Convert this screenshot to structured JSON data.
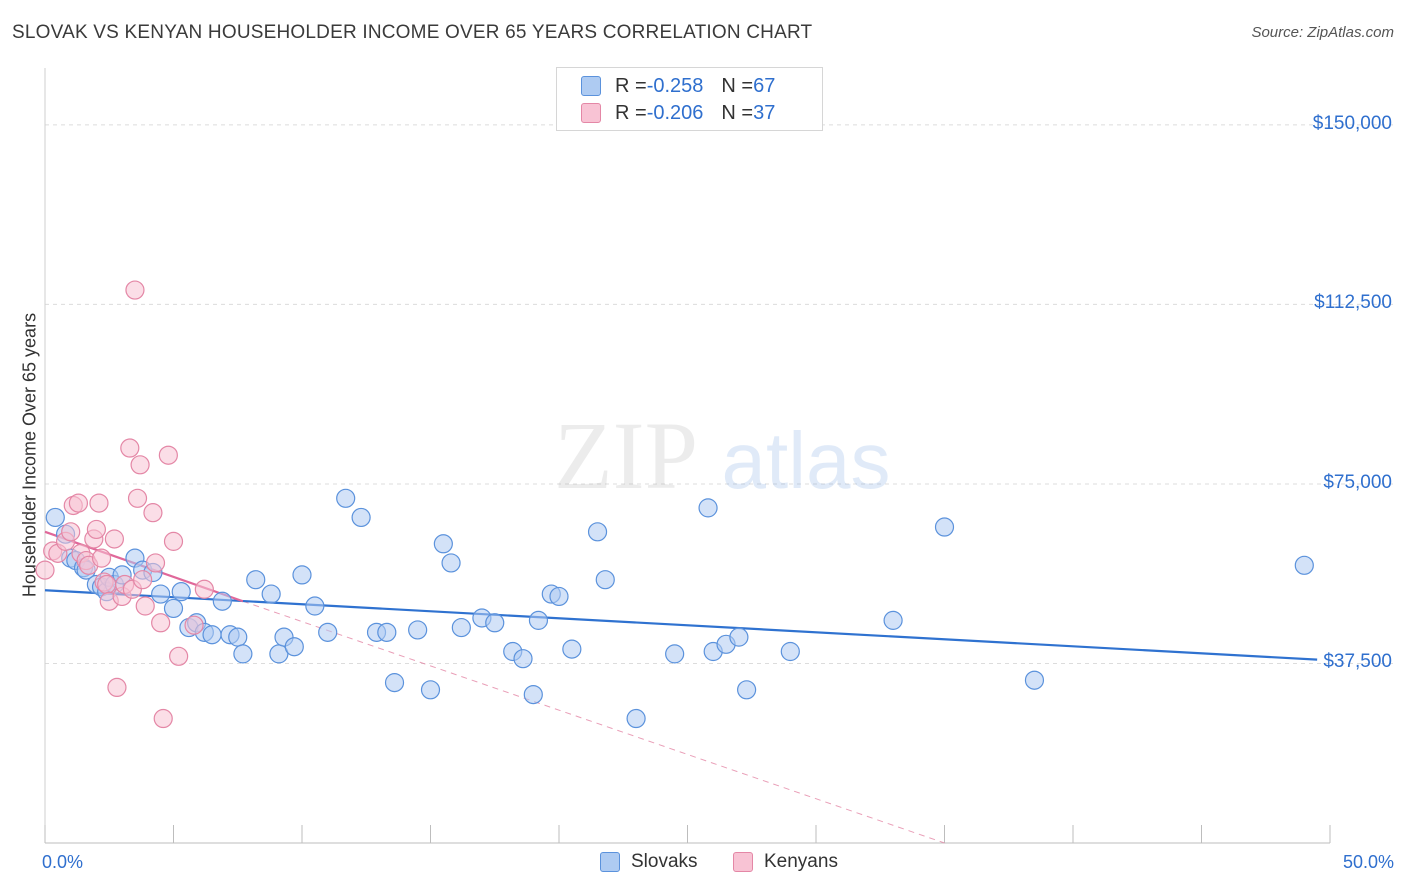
{
  "title": "SLOVAK VS KENYAN HOUSEHOLDER INCOME OVER 65 YEARS CORRELATION CHART",
  "source": "Source: ZipAtlas.com",
  "watermark": {
    "zip": "ZIP",
    "atlas": "atlas"
  },
  "legend_top": [
    {
      "r_label": "R = ",
      "r": "-0.258",
      "n_label": "N = ",
      "n": "67"
    },
    {
      "r_label": "R = ",
      "r": "-0.206",
      "n_label": "N = ",
      "n": "37"
    }
  ],
  "chart_data": {
    "type": "scatter",
    "title": "SLOVAK VS KENYAN HOUSEHOLDER INCOME OVER 65 YEARS CORRELATION CHART",
    "xlabel": "",
    "ylabel": "Householder Income Over 65 years",
    "xlim": [
      0,
      50
    ],
    "ylim": [
      0,
      160000
    ],
    "x_tick_labels": [
      "0.0%",
      "50.0%"
    ],
    "y_ticks": [
      37500,
      75000,
      112500,
      150000
    ],
    "y_tick_labels": [
      "$37,500",
      "$75,000",
      "$112,500",
      "$150,000"
    ],
    "grid": "horizontal dashed",
    "legend_position": "bottom-center",
    "colors": {
      "slovaks_fill": "#aecbf2",
      "slovaks_stroke": "#5b92dc",
      "slovaks_line": "#2f72d0",
      "kenyans_fill": "#f8c3d4",
      "kenyans_stroke": "#e487a6",
      "kenyans_line": "#e0689a"
    },
    "series": [
      {
        "name": "Slovaks",
        "stats": {
          "r": -0.258,
          "n": 67
        },
        "trend": {
          "x0": 0.0,
          "y0": 52800,
          "x1": 49.5,
          "y1": 38300
        },
        "points": [
          [
            0.4,
            68000
          ],
          [
            0.8,
            64500
          ],
          [
            1.0,
            59500
          ],
          [
            1.2,
            59000
          ],
          [
            1.5,
            57500
          ],
          [
            1.6,
            57000
          ],
          [
            2.0,
            54000
          ],
          [
            2.2,
            53500
          ],
          [
            2.4,
            52500
          ],
          [
            2.5,
            55500
          ],
          [
            2.7,
            54000
          ],
          [
            3.0,
            56000
          ],
          [
            3.5,
            59500
          ],
          [
            3.8,
            57000
          ],
          [
            4.2,
            56500
          ],
          [
            4.5,
            52000
          ],
          [
            5.0,
            49000
          ],
          [
            5.3,
            52500
          ],
          [
            5.6,
            45000
          ],
          [
            5.9,
            46000
          ],
          [
            6.2,
            44000
          ],
          [
            6.5,
            43500
          ],
          [
            6.9,
            50500
          ],
          [
            7.2,
            43500
          ],
          [
            7.5,
            43000
          ],
          [
            7.7,
            39500
          ],
          [
            8.2,
            55000
          ],
          [
            8.8,
            52000
          ],
          [
            9.1,
            39500
          ],
          [
            9.3,
            43000
          ],
          [
            9.7,
            41000
          ],
          [
            10.0,
            56000
          ],
          [
            10.5,
            49500
          ],
          [
            11.0,
            44000
          ],
          [
            11.7,
            72000
          ],
          [
            12.3,
            68000
          ],
          [
            12.9,
            44000
          ],
          [
            13.3,
            44000
          ],
          [
            13.6,
            33500
          ],
          [
            14.5,
            44500
          ],
          [
            15.0,
            32000
          ],
          [
            15.5,
            62500
          ],
          [
            15.8,
            58500
          ],
          [
            16.2,
            45000
          ],
          [
            17.0,
            47000
          ],
          [
            17.5,
            46000
          ],
          [
            18.2,
            40000
          ],
          [
            18.6,
            38500
          ],
          [
            19.0,
            31000
          ],
          [
            19.2,
            46500
          ],
          [
            19.7,
            52000
          ],
          [
            20.0,
            51500
          ],
          [
            20.5,
            40500
          ],
          [
            21.5,
            65000
          ],
          [
            21.8,
            55000
          ],
          [
            23.0,
            26000
          ],
          [
            24.5,
            39500
          ],
          [
            25.8,
            70000
          ],
          [
            26.0,
            40000
          ],
          [
            26.5,
            41500
          ],
          [
            27.0,
            43000
          ],
          [
            27.3,
            32000
          ],
          [
            29.0,
            40000
          ],
          [
            33.0,
            46500
          ],
          [
            35.0,
            66000
          ],
          [
            38.5,
            34000
          ],
          [
            49.0,
            58000
          ]
        ]
      },
      {
        "name": "Kenyans",
        "stats": {
          "r": -0.206,
          "n": 37
        },
        "trend": {
          "x0": 0.0,
          "y0": 65000,
          "x1": 7.7,
          "y1": 50500
        },
        "trend_extension": {
          "x0": 7.7,
          "y0": 50500,
          "x1": 35.0,
          "y1": 0
        },
        "points": [
          [
            0.0,
            57000
          ],
          [
            0.3,
            61000
          ],
          [
            0.5,
            60500
          ],
          [
            0.8,
            63000
          ],
          [
            1.0,
            65000
          ],
          [
            1.1,
            70500
          ],
          [
            1.3,
            71000
          ],
          [
            1.4,
            60500
          ],
          [
            1.6,
            59000
          ],
          [
            1.7,
            58000
          ],
          [
            1.9,
            63500
          ],
          [
            2.0,
            65500
          ],
          [
            2.1,
            71000
          ],
          [
            2.2,
            59500
          ],
          [
            2.3,
            54500
          ],
          [
            2.4,
            54000
          ],
          [
            2.5,
            50500
          ],
          [
            2.7,
            63500
          ],
          [
            2.8,
            32500
          ],
          [
            3.0,
            51500
          ],
          [
            3.1,
            54000
          ],
          [
            3.3,
            82500
          ],
          [
            3.4,
            53000
          ],
          [
            3.5,
            115500
          ],
          [
            3.6,
            72000
          ],
          [
            3.7,
            79000
          ],
          [
            3.8,
            55000
          ],
          [
            3.9,
            49500
          ],
          [
            4.2,
            69000
          ],
          [
            4.3,
            58500
          ],
          [
            4.5,
            46000
          ],
          [
            4.6,
            26000
          ],
          [
            4.8,
            81000
          ],
          [
            5.0,
            63000
          ],
          [
            5.2,
            39000
          ],
          [
            5.8,
            45500
          ],
          [
            6.2,
            53000
          ]
        ]
      }
    ]
  },
  "bottom_legend": {
    "slovaks": "Slovaks",
    "kenyans": "Kenyans"
  }
}
